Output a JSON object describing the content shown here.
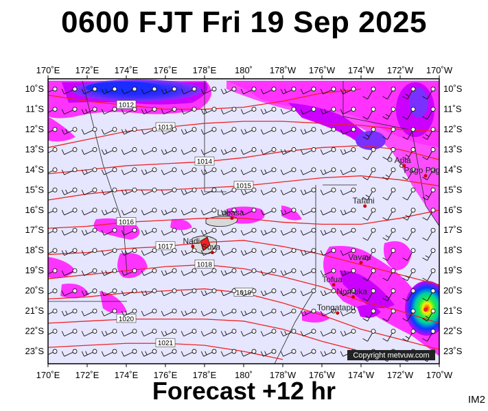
{
  "header": {
    "title": "0600 FJT Fri 19 Sep 2025"
  },
  "footer": {
    "forecast": "Forecast +12 hr",
    "corner_code": "IM2"
  },
  "copyright": "Copyright metvuw.com",
  "lon_labels": [
    "170˚E",
    "172˚E",
    "174˚E",
    "176˚E",
    "178˚E",
    "180˚",
    "178˚W",
    "176˚W",
    "174˚W",
    "172˚W",
    "170˚W"
  ],
  "lat_labels": [
    "10˚S",
    "11˚S",
    "12˚S",
    "13˚S",
    "14˚S",
    "15˚S",
    "16˚S",
    "17˚S",
    "18˚S",
    "19˚S",
    "20˚S",
    "21˚S",
    "22˚S",
    "23˚S"
  ],
  "isobars": [
    {
      "label": "1012",
      "points": [
        [
          170,
          -10.3
        ],
        [
          172,
          -10.6
        ],
        [
          174,
          -10.8
        ],
        [
          176,
          -11.0
        ],
        [
          178,
          -11.0
        ],
        [
          180,
          -10.9
        ],
        [
          182,
          -10.6
        ],
        [
          184,
          -10.2
        ],
        [
          186,
          -10.0
        ]
      ]
    },
    {
      "label": "1013",
      "points": [
        [
          170,
          -12.9
        ],
        [
          172,
          -12.5
        ],
        [
          174,
          -12.1
        ],
        [
          176,
          -11.9
        ],
        [
          178,
          -11.7
        ],
        [
          180,
          -11.6
        ],
        [
          182,
          -11.6
        ],
        [
          184,
          -11.7
        ],
        [
          186,
          -11.8
        ],
        [
          188,
          -12.0
        ],
        [
          190,
          -12.1
        ]
      ]
    },
    {
      "label": "1014",
      "points": [
        [
          170,
          -14.2
        ],
        [
          172,
          -14.0
        ],
        [
          174,
          -13.8
        ],
        [
          176,
          -13.7
        ],
        [
          178,
          -13.6
        ],
        [
          180,
          -13.4
        ],
        [
          182,
          -13.1
        ],
        [
          184,
          -12.9
        ],
        [
          186,
          -12.8
        ],
        [
          188,
          -13.0
        ],
        [
          190,
          -13.5
        ]
      ]
    },
    {
      "label": "1015",
      "points": [
        [
          170,
          -15.5
        ],
        [
          172,
          -15.2
        ],
        [
          174,
          -15.0
        ],
        [
          176,
          -15.0
        ],
        [
          178,
          -14.9
        ],
        [
          180,
          -14.8
        ],
        [
          182,
          -14.6
        ],
        [
          184,
          -14.4
        ],
        [
          186,
          -14.3
        ],
        [
          188,
          -14.5
        ],
        [
          190,
          -14.8
        ]
      ]
    },
    {
      "label": "1016",
      "points": [
        [
          170,
          -16.9
        ],
        [
          172,
          -16.8
        ],
        [
          174,
          -16.6
        ],
        [
          176,
          -16.5
        ],
        [
          178,
          -16.4
        ],
        [
          180,
          -16.4
        ],
        [
          182,
          -16.6
        ],
        [
          184,
          -16.7
        ],
        [
          186,
          -16.7
        ],
        [
          188,
          -16.4
        ],
        [
          190,
          -16.0
        ]
      ]
    },
    {
      "label": "1017",
      "points": [
        [
          170,
          -18.2
        ],
        [
          172,
          -18.1
        ],
        [
          174,
          -17.9
        ],
        [
          176,
          -17.8
        ],
        [
          178,
          -17.6
        ],
        [
          180,
          -17.5
        ],
        [
          182,
          -17.8
        ],
        [
          184,
          -18.2
        ],
        [
          186,
          -18.7
        ],
        [
          188,
          -19.2
        ],
        [
          190,
          -19.7
        ]
      ]
    },
    {
      "label": "1018",
      "points": [
        [
          170,
          -19.4
        ],
        [
          172,
          -19.2
        ],
        [
          174,
          -19.0
        ],
        [
          176,
          -18.8
        ],
        [
          178,
          -18.7
        ],
        [
          180,
          -18.9
        ],
        [
          182,
          -19.3
        ],
        [
          184,
          -19.8
        ],
        [
          186,
          -20.5
        ],
        [
          188,
          -21.0
        ],
        [
          190,
          -21.6
        ]
      ]
    },
    {
      "label": "1019",
      "points": [
        [
          170,
          -20.4
        ],
        [
          172,
          -20.3
        ],
        [
          174,
          -20.1
        ],
        [
          176,
          -20.0
        ],
        [
          178,
          -19.9
        ],
        [
          180,
          -20.1
        ],
        [
          182,
          -20.6
        ],
        [
          184,
          -21.2
        ],
        [
          186,
          -21.9
        ],
        [
          188,
          -22.4
        ],
        [
          190,
          -22.9
        ]
      ]
    },
    {
      "label": "1020",
      "points": [
        [
          170,
          -21.6
        ],
        [
          172,
          -21.5
        ],
        [
          174,
          -21.4
        ],
        [
          176,
          -21.4
        ],
        [
          178,
          -21.4
        ],
        [
          180,
          -21.5
        ],
        [
          182,
          -21.9
        ],
        [
          184,
          -22.5
        ],
        [
          186,
          -23.0
        ],
        [
          188,
          -23.3
        ]
      ]
    },
    {
      "label": "1021",
      "points": [
        [
          170,
          -22.8
        ],
        [
          172,
          -22.7
        ],
        [
          174,
          -22.6
        ],
        [
          176,
          -22.6
        ],
        [
          178,
          -22.7
        ],
        [
          180,
          -23.0
        ],
        [
          182,
          -23.4
        ]
      ]
    }
  ],
  "places": [
    {
      "name": "Apia",
      "lon": 188.2,
      "lat": -13.8
    },
    {
      "name": "Pago Pago",
      "lon": 189.3,
      "lat": -14.3
    },
    {
      "name": "Tafahi",
      "lon": 186.2,
      "lat": -15.8
    },
    {
      "name": "Labasa",
      "lon": 179.4,
      "lat": -16.4
    },
    {
      "name": "Nadi",
      "lon": 177.4,
      "lat": -17.8
    },
    {
      "name": "Suva",
      "lon": 178.4,
      "lat": -18.1
    },
    {
      "name": "Vavau",
      "lon": 186.0,
      "lat": -18.6
    },
    {
      "name": "Tofua",
      "lon": 184.6,
      "lat": -19.7
    },
    {
      "name": "Nomuka",
      "lon": 185.6,
      "lat": -20.3
    },
    {
      "name": "Tongatapu",
      "lon": 184.8,
      "lat": -21.1
    }
  ],
  "colors": {
    "background": "#e6e6ff",
    "rain_light": "#ff33ff",
    "rain_medium": "#cc00ff",
    "rain_heavy": "#7a30ff",
    "rain_intense": "#1a2cff",
    "isobar": "#ee2222",
    "barb": "#111111"
  }
}
